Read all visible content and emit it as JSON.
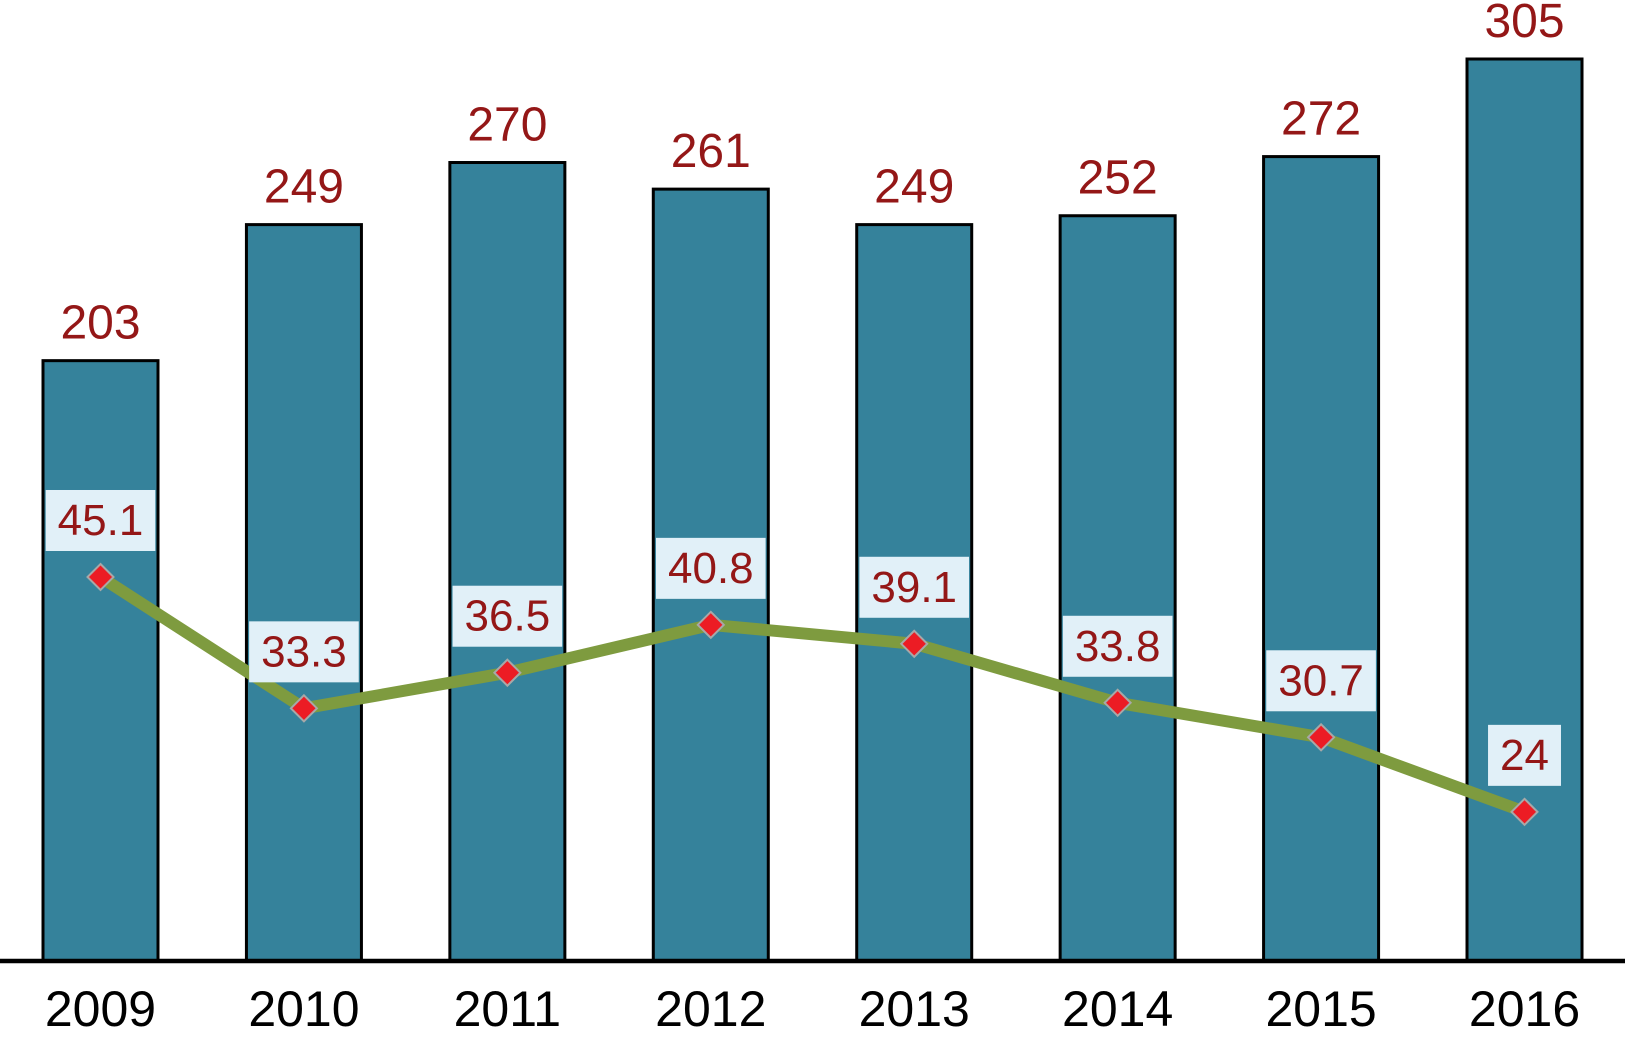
{
  "chart_data": {
    "type": "combo",
    "categories": [
      "2009",
      "2010",
      "2011",
      "2012",
      "2013",
      "2014",
      "2015",
      "2016"
    ],
    "series": [
      {
        "name": "bar-series",
        "type": "bar",
        "values": [
          203,
          249,
          270,
          261,
          249,
          252,
          272,
          305
        ]
      },
      {
        "name": "line-series",
        "type": "line",
        "values": [
          45.1,
          33.3,
          36.5,
          40.8,
          39.1,
          33.8,
          30.7,
          24
        ]
      }
    ],
    "title": "",
    "xlabel": "",
    "ylabel": "",
    "y1lim": [
      0,
      305
    ],
    "grid": false,
    "legend": "none",
    "data_labels": true,
    "axes_visible": {
      "x_line": true,
      "y_line": false,
      "y_ticks": false
    }
  },
  "colors": {
    "background": "#FFFFFF",
    "bar_fill": "#35829B",
    "bar_border": "#000000",
    "value_label_text": "#941717",
    "line": "#7E9B3F",
    "marker_fill": "#EC1C24",
    "marker_border": "#A8A8A8",
    "line_label_bg": "#E1F0F8",
    "axis_line": "#000000",
    "x_label_text": "#000000"
  }
}
